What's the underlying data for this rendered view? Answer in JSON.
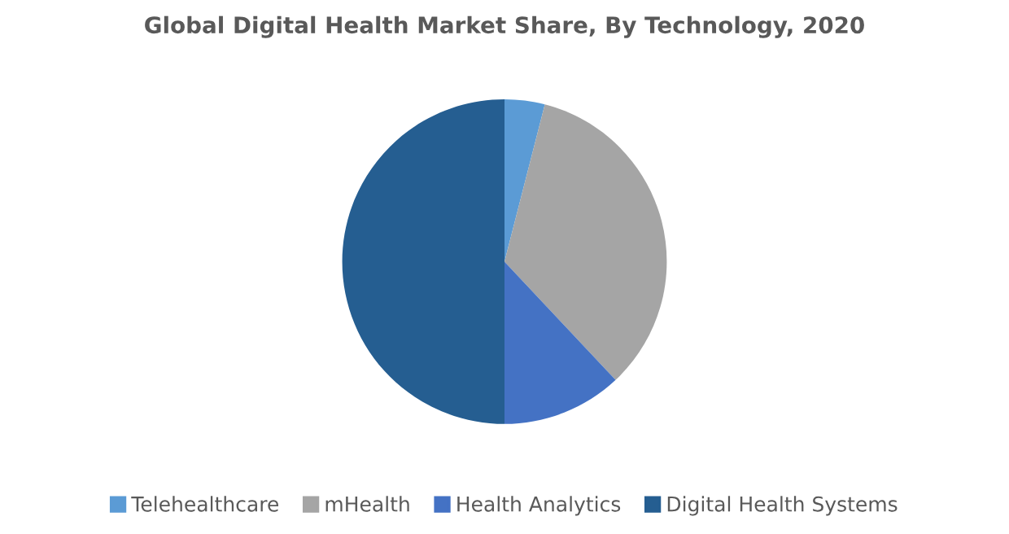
{
  "chart_data": {
    "type": "pie",
    "title": "Global Digital Health Market Share, By Technology, 2020",
    "categories": [
      "Telehealthcare",
      "mHealth",
      "Health Analytics",
      "Digital Health Systems"
    ],
    "values": [
      4,
      34,
      12,
      50
    ],
    "colors": [
      "#5b9bd5",
      "#a5a5a5",
      "#4472c4",
      "#255e91"
    ],
    "legend": "bottom"
  }
}
